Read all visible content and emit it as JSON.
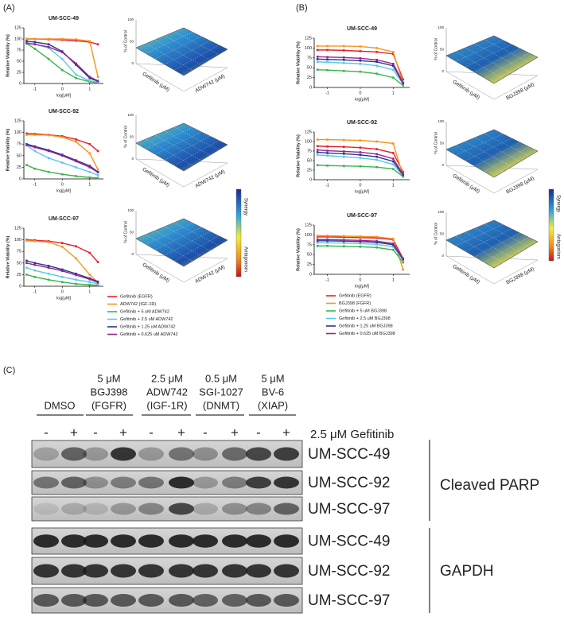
{
  "panel_a": {
    "label": "(A)",
    "charts": [
      {
        "type": "line",
        "title": "UM-SCC-49",
        "xlabel": "log[μM]",
        "ylabel": "Relative Viability (%)",
        "x": [
          -1.3,
          -1,
          -0.5,
          0,
          0.5,
          1,
          1.3
        ],
        "xlim": [
          -1.4,
          1.5
        ],
        "xticks": [
          -1,
          0,
          1
        ],
        "ylim": [
          0,
          125
        ],
        "yticks": [
          0,
          25,
          50,
          75,
          100,
          125
        ],
        "series": [
          {
            "values": [
              100,
              100,
              99,
              98,
              96,
              93,
              88
            ]
          },
          {
            "values": [
              100,
              100,
              100,
              100,
              99,
              95,
              15
            ]
          },
          {
            "values": [
              90,
              78,
              55,
              30,
              12,
              4,
              2
            ]
          },
          {
            "values": [
              92,
              88,
              80,
              55,
              20,
              6,
              3
            ]
          },
          {
            "values": [
              95,
              93,
              88,
              72,
              42,
              12,
              5
            ]
          },
          {
            "values": [
              90,
              88,
              82,
              70,
              45,
              15,
              6
            ]
          }
        ]
      },
      {
        "type": "line",
        "title": "UM-SCC-92",
        "xlabel": "log[μM]",
        "ylabel": "Relative Viability (%)",
        "x": [
          -1.3,
          -1,
          -0.5,
          0,
          0.5,
          1,
          1.3
        ],
        "xlim": [
          -1.4,
          1.5
        ],
        "xticks": [
          -1,
          0,
          1
        ],
        "ylim": [
          0,
          125
        ],
        "yticks": [
          0,
          25,
          50,
          75,
          100,
          125
        ],
        "series": [
          {
            "values": [
              98,
              97,
              95,
              92,
              85,
              75,
              60
            ]
          },
          {
            "values": [
              95,
              95,
              94,
              90,
              80,
              55,
              20
            ]
          },
          {
            "values": [
              30,
              22,
              15,
              10,
              6,
              3,
              2
            ]
          },
          {
            "values": [
              72,
              60,
              45,
              35,
              25,
              15,
              8
            ]
          },
          {
            "values": [
              75,
              70,
              62,
              52,
              40,
              28,
              15
            ]
          },
          {
            "values": [
              73,
              68,
              60,
              50,
              38,
              25,
              14
            ]
          }
        ]
      },
      {
        "type": "line",
        "title": "UM-SCC-97",
        "xlabel": "log[μM]",
        "ylabel": "Relative Viability (%)",
        "x": [
          -1.3,
          -1,
          -0.5,
          0,
          0.5,
          1,
          1.3
        ],
        "xlim": [
          -1.4,
          1.5
        ],
        "xticks": [
          -1,
          0,
          1
        ],
        "ylim": [
          0,
          125
        ],
        "yticks": [
          0,
          25,
          50,
          75,
          100,
          125
        ],
        "series": [
          {
            "values": [
              100,
              99,
              97,
              93,
              86,
              72,
              52
            ]
          },
          {
            "values": [
              98,
              97,
              95,
              85,
              60,
              25,
              8
            ]
          },
          {
            "values": [
              25,
              20,
              14,
              9,
              5,
              3,
              2
            ]
          },
          {
            "values": [
              40,
              34,
              27,
              20,
              14,
              9,
              5
            ]
          },
          {
            "values": [
              55,
              50,
              44,
              36,
              27,
              17,
              10
            ]
          },
          {
            "values": [
              50,
              46,
              40,
              33,
              24,
              15,
              8
            ]
          }
        ]
      }
    ],
    "legend": [
      {
        "name": "Gefitinib (EGFR)",
        "color": "#e8202a"
      },
      {
        "name": "ADW742 (IGF-1R)",
        "color": "#f7941d"
      },
      {
        "name": "Gefitinib + 5 uM ADW742",
        "color": "#39b54a"
      },
      {
        "name": "Gefitinib + 2.5 uM ADW742",
        "color": "#5bc8e8"
      },
      {
        "name": "Gefitinib + 1.25 uM ADW742",
        "color": "#2e3192"
      },
      {
        "name": "Gefitinib + 0.625 uM ADW742",
        "color": "#92278f"
      }
    ],
    "surface": {
      "zlabel": "% of Control",
      "xlabel": "Gefitinib (μM)",
      "ylabel": "ADW742 (μM)",
      "zticks": [
        100,
        50,
        0
      ]
    },
    "colorbar": {
      "top": "Synergy",
      "bottom": "Antagonism"
    }
  },
  "panel_b": {
    "label": "(B)",
    "charts": [
      {
        "type": "line",
        "title": "UM-SCC-49",
        "xlabel": "log[μM]",
        "ylabel": "Relative Viability (%)",
        "x": [
          -1.3,
          -1,
          -0.5,
          0,
          0.5,
          1,
          1.3
        ],
        "xlim": [
          -1.4,
          1.5
        ],
        "xticks": [
          -1,
          0,
          1
        ],
        "ylim": [
          0,
          125
        ],
        "yticks": [
          0,
          25,
          50,
          75,
          100,
          125
        ],
        "series": [
          {
            "values": [
              95,
              95,
              94,
              92,
              90,
              85,
              20
            ]
          },
          {
            "values": [
              105,
              105,
              105,
              104,
              100,
              90,
              10
            ]
          },
          {
            "values": [
              45,
              44,
              42,
              40,
              35,
              25,
              5
            ]
          },
          {
            "values": [
              65,
              64,
              62,
              60,
              55,
              45,
              8
            ]
          },
          {
            "values": [
              72,
              71,
              70,
              68,
              65,
              55,
              10
            ]
          },
          {
            "values": [
              78,
              77,
              76,
              74,
              70,
              60,
              12
            ]
          }
        ]
      },
      {
        "type": "line",
        "title": "UM-SCC-92",
        "xlabel": "log[μM]",
        "ylabel": "Relative Viability (%)",
        "x": [
          -1.3,
          -1,
          -0.5,
          0,
          0.5,
          1,
          1.3
        ],
        "xlim": [
          -1.4,
          1.5
        ],
        "xticks": [
          -1,
          0,
          1
        ],
        "ylim": [
          0,
          125
        ],
        "yticks": [
          0,
          25,
          50,
          75,
          100,
          125
        ],
        "series": [
          {
            "values": [
              88,
              87,
              86,
              84,
              80,
              70,
              20
            ]
          },
          {
            "values": [
              105,
              105,
              104,
              103,
              100,
              95,
              10
            ]
          },
          {
            "values": [
              38,
              37,
              36,
              35,
              33,
              28,
              8
            ]
          },
          {
            "values": [
              65,
              63,
              60,
              57,
              52,
              40,
              10
            ]
          },
          {
            "values": [
              72,
              70,
              68,
              65,
              60,
              48,
              12
            ]
          },
          {
            "values": [
              78,
              76,
              74,
              72,
              67,
              55,
              14
            ]
          }
        ]
      },
      {
        "type": "line",
        "title": "UM-SCC-97",
        "xlabel": "log[μM]",
        "ylabel": "Relative Viability (%)",
        "x": [
          -1.3,
          -1,
          -0.5,
          0,
          0.5,
          1,
          1.3
        ],
        "xlim": [
          -1.4,
          1.5
        ],
        "xticks": [
          -1,
          0,
          1
        ],
        "ylim": [
          0,
          125
        ],
        "yticks": [
          0,
          25,
          50,
          75,
          100,
          125
        ],
        "series": [
          {
            "values": [
              95,
              95,
              94,
              93,
              92,
              88,
              40
            ]
          },
          {
            "values": [
              98,
              98,
              97,
              96,
              95,
              90,
              12
            ]
          },
          {
            "values": [
              72,
              72,
              71,
              70,
              68,
              62,
              30
            ]
          },
          {
            "values": [
              80,
              80,
              79,
              78,
              76,
              70,
              35
            ]
          },
          {
            "values": [
              85,
              85,
              84,
              83,
              81,
              75,
              38
            ]
          },
          {
            "values": [
              88,
              88,
              87,
              86,
              84,
              78,
              40
            ]
          }
        ]
      }
    ],
    "legend": [
      {
        "name": "Gefitinib (EGFR)",
        "color": "#e8202a"
      },
      {
        "name": "BGJ398 (FGFR)",
        "color": "#f7941d"
      },
      {
        "name": "Gefitinib + 5 uM BGJ398",
        "color": "#39b54a"
      },
      {
        "name": "Gefitinib + 2.5 uM BGJ398",
        "color": "#5bc8e8"
      },
      {
        "name": "Gefitinib + 1.25 uM BGJ398",
        "color": "#2e3192"
      },
      {
        "name": "Gefitinib + 0.625 uM BGJ398",
        "color": "#92278f"
      }
    ],
    "surface": {
      "zlabel": "% of Control",
      "xlabel": "Gefitinib (μM)",
      "ylabel": "BGJ398 (μM)",
      "zticks": [
        100,
        50,
        0
      ]
    },
    "colorbar": {
      "top": "Synergy",
      "bottom": "Antagonism"
    }
  },
  "panel_c": {
    "label": "(C)",
    "treatments": [
      [
        "DMSO"
      ],
      [
        "5 μM",
        "BGJ398",
        "(FGFR)"
      ],
      [
        "2.5 μM",
        "ADW742",
        "(IGF-1R)"
      ],
      [
        "0.5 μM",
        "SGI-1027",
        "(DNMT)"
      ],
      [
        "5 μM",
        "BV-6",
        "(XIAP)"
      ]
    ],
    "signs": [
      "-",
      "+"
    ],
    "gefitinib": "2.5 μM Gefitinib",
    "parp_rows": [
      "UM-SCC-49",
      "UM-SCC-92",
      "UM-SCC-97"
    ],
    "gapdh_rows": [
      "UM-SCC-49",
      "UM-SCC-92",
      "UM-SCC-97"
    ],
    "parp_label": "Cleaved PARP",
    "gapdh_label": "GAPDH"
  }
}
